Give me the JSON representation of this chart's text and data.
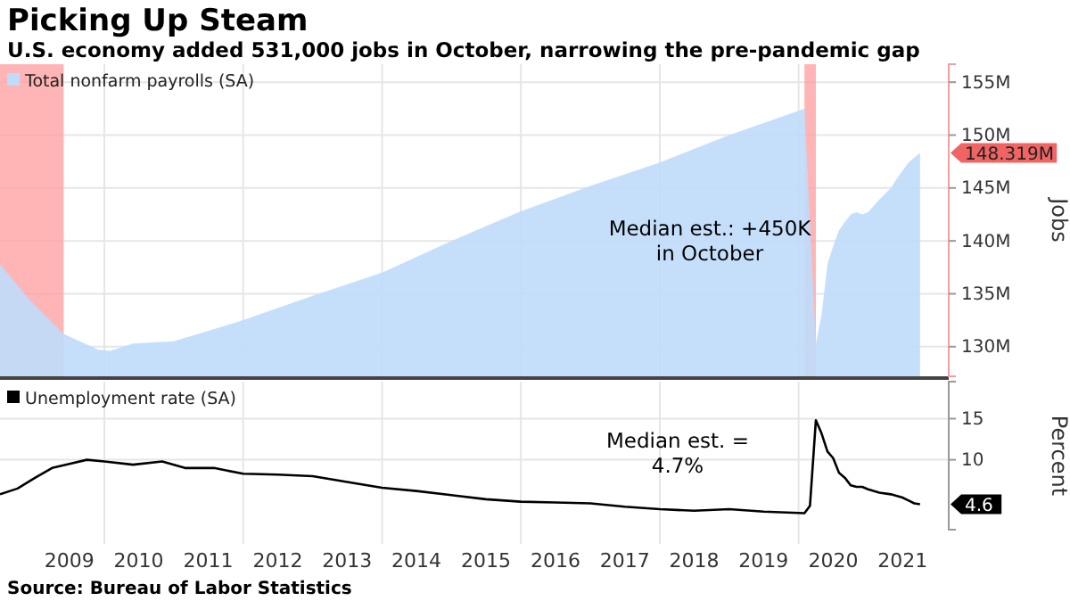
{
  "chart_data": [
    {
      "type": "area",
      "title": "Picking Up Steam",
      "subtitle": "U.S. economy added 531,000 jobs in October, narrowing the pre-pandemic gap",
      "ylabel": "Jobs",
      "xlim": [
        "2008-07",
        "2022-03"
      ],
      "xticks": [
        {
          "value": "2010-01",
          "label": null
        },
        {
          "value": "2012-01",
          "label": null
        },
        {
          "value": "2014-01",
          "label": null
        },
        {
          "value": "2016-01",
          "label": null
        },
        {
          "value": "2018-01",
          "label": null
        },
        {
          "value": "2020-01",
          "label": null
        }
      ],
      "ylim": [
        127.2,
        156.7
      ],
      "yticks": [
        {
          "value": 130,
          "label": "130M"
        },
        {
          "value": 135,
          "label": "135M"
        },
        {
          "value": 140,
          "label": "140M"
        },
        {
          "value": 145,
          "label": "145M"
        },
        {
          "value": 150,
          "label": "150M"
        },
        {
          "value": 155,
          "label": "155M"
        }
      ],
      "tick_labels": "y",
      "grid": true,
      "legend": "top left",
      "series": [
        {
          "name": "Total nonfarm payrolls (SA)",
          "color": "#bfdcfb",
          "x": [
            "2008-07",
            "2008-12",
            "2009-06",
            "2009-12",
            "2010-02",
            "2010-06",
            "2011-01",
            "2012-01",
            "2013-01",
            "2014-01",
            "2015-01",
            "2016-01",
            "2017-01",
            "2018-01",
            "2019-01",
            "2020-01",
            "2020-02",
            "2020-04",
            "2020-05",
            "2020-06",
            "2020-07",
            "2020-08",
            "2020-09",
            "2020-10",
            "2020-11",
            "2020-12",
            "2021-01",
            "2021-03",
            "2021-05",
            "2021-06",
            "2021-08",
            "2021-10"
          ],
          "values": [
            137.8,
            134.5,
            131.2,
            129.7,
            129.6,
            130.3,
            130.5,
            132.5,
            134.8,
            137.0,
            140.0,
            142.8,
            145.2,
            147.4,
            150.0,
            152.3,
            152.5,
            130.3,
            133.0,
            137.8,
            139.5,
            141.0,
            141.8,
            142.5,
            142.7,
            142.5,
            142.7,
            143.9,
            145.0,
            145.9,
            147.4,
            148.319
          ]
        }
      ],
      "bands": [
        {
          "axis": "x",
          "from": "2007-12",
          "to": "2009-06",
          "color": "#ff9c9c"
        },
        {
          "axis": "x",
          "from": "2020-02",
          "to": "2020-04",
          "color": "#ff9c9c"
        }
      ],
      "annotations": [
        "Median est.: +450K\nin October",
        {
          "text": "148.319M",
          "x": "2021-10",
          "y": 148.319
        }
      ]
    },
    {
      "type": "line",
      "ylabel": "Percent",
      "xlim": [
        "2008-07",
        "2022-03"
      ],
      "xticks": [
        {
          "value": "2009-07",
          "label": "2009"
        },
        {
          "value": "2010-01",
          "label": null
        },
        {
          "value": "2010-07",
          "label": "2010"
        },
        {
          "value": "2011-07",
          "label": "2011"
        },
        {
          "value": "2012-01",
          "label": null
        },
        {
          "value": "2012-07",
          "label": "2012"
        },
        {
          "value": "2013-07",
          "label": "2013"
        },
        {
          "value": "2014-01",
          "label": null
        },
        {
          "value": "2014-07",
          "label": "2014"
        },
        {
          "value": "2015-07",
          "label": "2015"
        },
        {
          "value": "2016-01",
          "label": null
        },
        {
          "value": "2016-07",
          "label": "2016"
        },
        {
          "value": "2017-07",
          "label": "2017"
        },
        {
          "value": "2018-01",
          "label": null
        },
        {
          "value": "2018-07",
          "label": "2018"
        },
        {
          "value": "2019-07",
          "label": "2019"
        },
        {
          "value": "2020-01",
          "label": null
        },
        {
          "value": "2020-07",
          "label": "2020"
        },
        {
          "value": "2021-07",
          "label": "2021"
        }
      ],
      "ylim": [
        1.5,
        19.5
      ],
      "yticks": [
        10,
        15
      ],
      "grid": true,
      "legend": "top left",
      "series": [
        {
          "name": "Unemployment rate (SA)",
          "color": "#000000",
          "x": [
            "2008-07",
            "2008-10",
            "2009-01",
            "2009-04",
            "2009-07",
            "2009-10",
            "2010-01",
            "2010-06",
            "2010-11",
            "2011-03",
            "2011-08",
            "2012-01",
            "2012-07",
            "2013-01",
            "2013-07",
            "2014-01",
            "2014-07",
            "2015-01",
            "2015-07",
            "2016-01",
            "2016-07",
            "2017-01",
            "2017-07",
            "2018-01",
            "2018-07",
            "2019-01",
            "2019-07",
            "2020-02",
            "2020-03",
            "2020-04",
            "2020-05",
            "2020-06",
            "2020-07",
            "2020-08",
            "2020-09",
            "2020-10",
            "2020-11",
            "2020-12",
            "2021-01",
            "2021-03",
            "2021-05",
            "2021-07",
            "2021-09",
            "2021-10"
          ],
          "values": [
            5.8,
            6.5,
            7.8,
            9.0,
            9.5,
            10.0,
            9.8,
            9.4,
            9.8,
            9.0,
            9.0,
            8.3,
            8.2,
            8.0,
            7.3,
            6.6,
            6.2,
            5.7,
            5.2,
            4.9,
            4.8,
            4.7,
            4.3,
            4.0,
            3.8,
            4.0,
            3.7,
            3.5,
            4.4,
            14.8,
            13.2,
            11.0,
            10.2,
            8.4,
            7.8,
            6.9,
            6.7,
            6.7,
            6.4,
            6.0,
            5.8,
            5.4,
            4.7,
            4.6
          ]
        }
      ],
      "annotations": [
        "Median est. =\n4.7%",
        {
          "text": "4.6",
          "x": "2021-10",
          "y": 4.6
        },
        "Source: Bureau of Labor Statistics"
      ]
    }
  ]
}
